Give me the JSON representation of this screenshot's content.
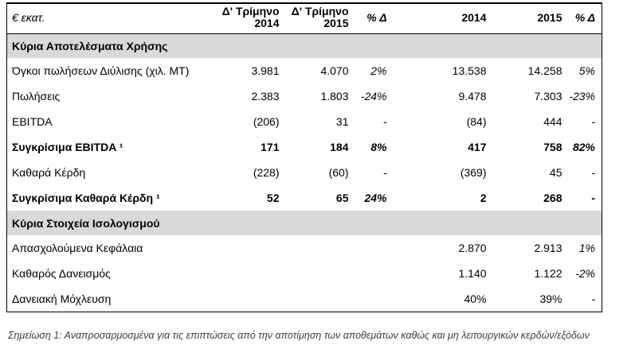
{
  "table": {
    "unit_label": "€ εκατ.",
    "headers": {
      "q2014_line1": "Δ' Τρίμηνο",
      "q2014_line2": "2014",
      "q2015_line1": "Δ' Τρίμηνο",
      "q2015_line2": "2015",
      "pct_q": "% Δ",
      "y2014": "2014",
      "y2015": "2015",
      "pct_y": "% Δ"
    },
    "rows": [
      {
        "type": "section",
        "label": "Κύρια Αποτελέσματα Χρήσης"
      },
      {
        "type": "data",
        "bold": false,
        "label": "Όγκοι πωλήσεων Διύλισης (χιλ. ΜΤ)",
        "values": [
          "3.981",
          "4.070",
          "2%",
          "13.538",
          "14.258",
          "5%"
        ]
      },
      {
        "type": "data",
        "bold": false,
        "label": "Πωλήσεις",
        "values": [
          "2.383",
          "1.803",
          "-24%",
          "9.478",
          "7.303",
          "-23%"
        ]
      },
      {
        "type": "data",
        "bold": false,
        "label": "EBITDA",
        "values": [
          "(206)",
          "31",
          "-",
          "(84)",
          "444",
          "-"
        ]
      },
      {
        "type": "data",
        "bold": true,
        "label": "Συγκρίσιμα EBITDA ¹",
        "values": [
          "171",
          "184",
          "8%",
          "417",
          "758",
          "82%"
        ]
      },
      {
        "type": "data",
        "bold": false,
        "label": "Καθαρά Κέρδη",
        "values": [
          "(228)",
          "(60)",
          "-",
          "(369)",
          "45",
          "-"
        ]
      },
      {
        "type": "data",
        "bold": true,
        "label": "Συγκρίσιμα Καθαρά Κέρδη ¹",
        "values": [
          "52",
          "65",
          "24%",
          "2",
          "268",
          "-"
        ]
      },
      {
        "type": "section",
        "label": "Κύρια Στοιχεία Ισολογισμού"
      },
      {
        "type": "data",
        "bold": false,
        "label": "Απασχολούμενα Κεφάλαια",
        "values": [
          "",
          "",
          "",
          "2.870",
          "2.913",
          "1%"
        ]
      },
      {
        "type": "data",
        "bold": false,
        "label": "Καθαρός Δανεισμός",
        "values": [
          "",
          "",
          "",
          "1.140",
          "1.122",
          "-2%"
        ]
      },
      {
        "type": "data",
        "bold": false,
        "label": "Δανειακή Μόχλευση",
        "values": [
          "",
          "",
          "",
          "40%",
          "39%",
          "-"
        ]
      }
    ],
    "colors": {
      "section_band": "#d9d9d9",
      "border": "#000000",
      "text": "#000000"
    }
  },
  "footnote": "Σημείωση 1: Αναπροσαρμοσμένα για τις επιπτώσεις από την αποτίμηση των αποθεμάτων καθώς και μη λειτουργικών κερδών/εξόδων"
}
